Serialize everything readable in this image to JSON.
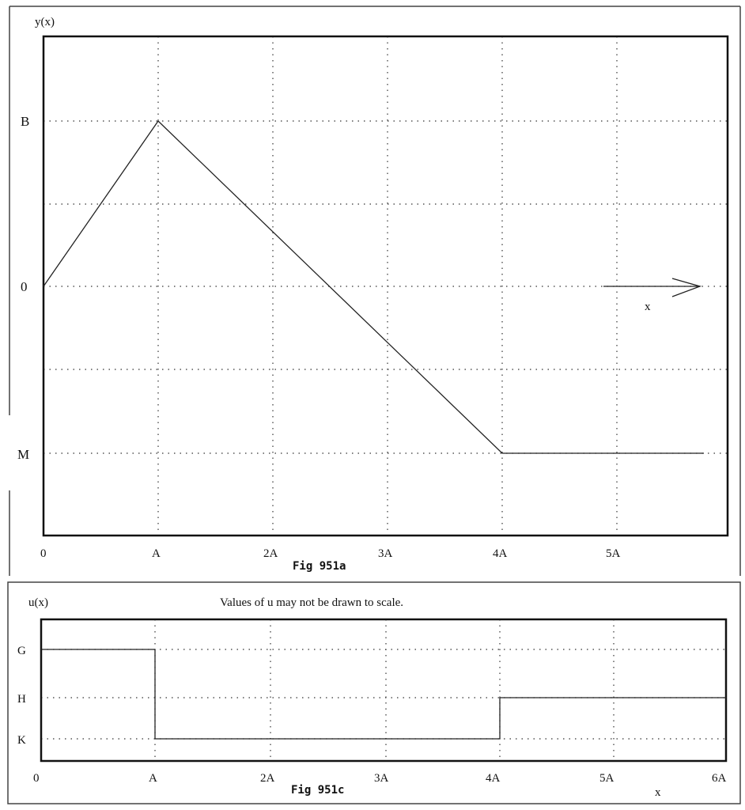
{
  "fig_a": {
    "y_axis_label": "y(x)",
    "caption": "Fig 951a",
    "x_ticks": [
      "0",
      "A",
      "2A",
      "3A",
      "4A",
      "5A"
    ],
    "y_ticks": {
      "B": "B",
      "zero": "0",
      "M": "M"
    },
    "arrow_label": "x"
  },
  "fig_c": {
    "y_axis_label": "u(x)",
    "note": "Values of u may not be drawn to scale.",
    "caption": "Fig 951c",
    "x_ticks": [
      "0",
      "A",
      "2A",
      "3A",
      "4A",
      "5A",
      "6A"
    ],
    "y_ticks": {
      "G": "G",
      "H": "H",
      "K": "K"
    },
    "x_axis_label": "x"
  },
  "chart_data": [
    {
      "type": "line",
      "x_unit": "A",
      "points": [
        [
          0,
          0
        ],
        [
          1,
          "B"
        ],
        [
          4,
          "M"
        ],
        [
          5.8,
          "M"
        ]
      ]
    },
    {
      "type": "line",
      "x_unit": "A",
      "steps": [
        {
          "from": 0,
          "to": 1,
          "value": "G"
        },
        {
          "from": 1,
          "to": 4,
          "value": "K"
        },
        {
          "from": 4,
          "to": 6,
          "value": "H"
        }
      ]
    }
  ]
}
